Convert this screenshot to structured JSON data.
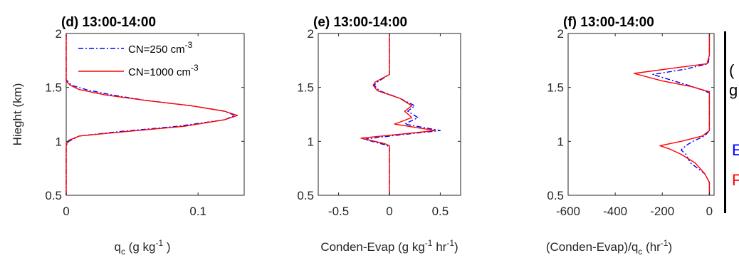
{
  "chart_data": [
    {
      "type": "line",
      "panel_title": "(d) 13:00-14:00",
      "xlabel": "q_c (g kg^-1 )",
      "ylabel": "Hieght (km)",
      "xticks": [
        "0",
        "0.1"
      ],
      "yticks": [
        "0.5",
        "1",
        "1.5",
        "2"
      ],
      "xlim": [
        0,
        0.135
      ],
      "ylim": [
        0.5,
        2
      ],
      "legend_position": "top-right",
      "series": [
        {
          "name": "CN=250 cm^-3",
          "color": "#0000ff",
          "style": "dash-dot",
          "points": [
            [
              0,
              0.5
            ],
            [
              0,
              0.96
            ],
            [
              0.002,
              1.0
            ],
            [
              0.01,
              1.05
            ],
            [
              0.04,
              1.09
            ],
            [
              0.085,
              1.14
            ],
            [
              0.12,
              1.2
            ],
            [
              0.128,
              1.24
            ],
            [
              0.12,
              1.28
            ],
            [
              0.095,
              1.33
            ],
            [
              0.06,
              1.38
            ],
            [
              0.035,
              1.43
            ],
            [
              0.015,
              1.48
            ],
            [
              0.004,
              1.52
            ],
            [
              0,
              1.57
            ],
            [
              0,
              2
            ]
          ]
        },
        {
          "name": "CN=1000 cm^-3",
          "color": "#ff0000",
          "style": "solid",
          "points": [
            [
              0,
              0.5
            ],
            [
              0,
              0.97
            ],
            [
              0.002,
              1.01
            ],
            [
              0.01,
              1.05
            ],
            [
              0.045,
              1.09
            ],
            [
              0.09,
              1.14
            ],
            [
              0.12,
              1.2
            ],
            [
              0.13,
              1.24
            ],
            [
              0.12,
              1.28
            ],
            [
              0.095,
              1.33
            ],
            [
              0.06,
              1.38
            ],
            [
              0.03,
              1.43
            ],
            [
              0.01,
              1.48
            ],
            [
              0.003,
              1.52
            ],
            [
              0,
              1.56
            ],
            [
              0,
              2
            ]
          ]
        }
      ]
    },
    {
      "type": "line",
      "panel_title": "(e) 13:00-14:00",
      "xlabel": "Conden-Evap (g kg^-1 hr^-1)",
      "xticks": [
        "-0.5",
        "0",
        "0.5"
      ],
      "yticks": [
        "0.5",
        "1",
        "1.5",
        "2"
      ],
      "xlim": [
        -0.7,
        0.7
      ],
      "ylim": [
        0.5,
        2
      ],
      "series": [
        {
          "name": "CN=250 cm^-3",
          "color": "#0000ff",
          "style": "dash-dot",
          "points": [
            [
              0,
              0.5
            ],
            [
              0,
              0.95
            ],
            [
              -0.05,
              0.97
            ],
            [
              -0.25,
              1.02
            ],
            [
              0.1,
              1.06
            ],
            [
              0.5,
              1.1
            ],
            [
              0.15,
              1.16
            ],
            [
              0.28,
              1.22
            ],
            [
              0.18,
              1.28
            ],
            [
              0.25,
              1.33
            ],
            [
              0.1,
              1.4
            ],
            [
              -0.1,
              1.47
            ],
            [
              -0.15,
              1.52
            ],
            [
              -0.12,
              1.55
            ],
            [
              0,
              1.62
            ],
            [
              0,
              2
            ]
          ]
        },
        {
          "name": "CN=1000 cm^-3",
          "color": "#ff0000",
          "style": "solid",
          "points": [
            [
              0,
              0.5
            ],
            [
              0,
              0.96
            ],
            [
              -0.05,
              0.98
            ],
            [
              -0.28,
              1.03
            ],
            [
              0.15,
              1.07
            ],
            [
              0.45,
              1.1
            ],
            [
              0.05,
              1.16
            ],
            [
              0.22,
              1.22
            ],
            [
              0.15,
              1.28
            ],
            [
              0.22,
              1.33
            ],
            [
              0.1,
              1.4
            ],
            [
              -0.12,
              1.47
            ],
            [
              -0.16,
              1.52
            ],
            [
              -0.14,
              1.55
            ],
            [
              0,
              1.62
            ],
            [
              0,
              2
            ]
          ]
        }
      ]
    },
    {
      "type": "line",
      "panel_title": "(f) 13:00-14:00",
      "xlabel": "(Conden-Evap)/q_c (hr^-1)",
      "xticks": [
        "-600",
        "-400",
        "-200",
        "0"
      ],
      "yticks": [
        "0.5",
        "1",
        "1.5",
        "2"
      ],
      "xlim": [
        -600,
        20
      ],
      "ylim": [
        0.5,
        2
      ],
      "series": [
        {
          "name": "CN=250 cm^-3",
          "color": "#0000ff",
          "style": "dash-dot",
          "points": [
            [
              0,
              0.5
            ],
            [
              0,
              0.62
            ],
            [
              -20,
              0.7
            ],
            [
              -80,
              0.8
            ],
            [
              -100,
              0.88
            ],
            [
              -120,
              0.92
            ],
            [
              -100,
              0.96
            ],
            [
              -70,
              1.0
            ],
            [
              -20,
              1.05
            ],
            [
              0,
              1.1
            ],
            [
              0,
              1.45
            ],
            [
              -60,
              1.5
            ],
            [
              -150,
              1.56
            ],
            [
              -240,
              1.62
            ],
            [
              -100,
              1.67
            ],
            [
              -5,
              1.72
            ],
            [
              0,
              1.8
            ],
            [
              0,
              2
            ]
          ]
        },
        {
          "name": "CN=1000 cm^-3",
          "color": "#ff0000",
          "style": "solid",
          "points": [
            [
              0,
              0.5
            ],
            [
              0,
              0.62
            ],
            [
              -20,
              0.7
            ],
            [
              -60,
              0.8
            ],
            [
              -120,
              0.88
            ],
            [
              -170,
              0.93
            ],
            [
              -210,
              0.96
            ],
            [
              -120,
              1.0
            ],
            [
              -30,
              1.05
            ],
            [
              0,
              1.1
            ],
            [
              0,
              1.46
            ],
            [
              -80,
              1.51
            ],
            [
              -200,
              1.56
            ],
            [
              -320,
              1.63
            ],
            [
              -150,
              1.68
            ],
            [
              -10,
              1.72
            ],
            [
              0,
              1.8
            ],
            [
              0,
              2
            ]
          ]
        }
      ]
    }
  ],
  "cut_text": {
    "top": "(",
    "mid": "g",
    "blue": "E",
    "red": "F"
  }
}
